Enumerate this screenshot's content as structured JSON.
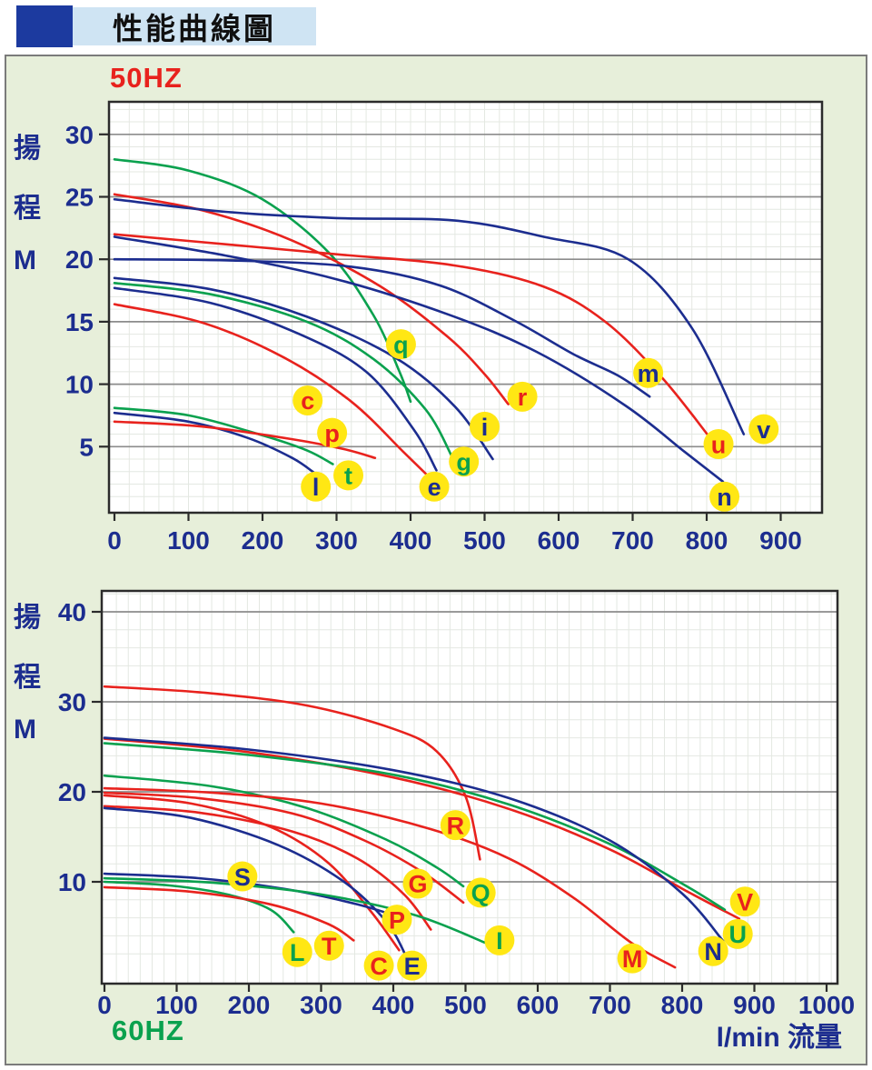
{
  "header": {
    "title": "性能曲線圖"
  },
  "colors": {
    "navy": "#1c2d8f",
    "red": "#e8221d",
    "green": "#0aa14e",
    "label_bg": "#ffe714",
    "panel_bg": "#e7efda",
    "title_bar_bg": "#cfe4f3",
    "title_square": "#1c3a9f",
    "grid_minor": "#e4e8e2",
    "grid_major": "#8c8c8c",
    "axis_frame": "#2b2b2b",
    "tick_text": "#1c2d8f"
  },
  "chart_data": [
    {
      "type": "line",
      "id": "50hz",
      "freq_label": "50HZ",
      "ylabel": "揚程 M",
      "ylabel_chars": [
        "揚",
        "程",
        "M"
      ],
      "xlabel": "",
      "x_ticks": [
        0,
        100,
        200,
        300,
        400,
        500,
        600,
        700,
        800,
        900
      ],
      "y_ticks": [
        5,
        10,
        15,
        20,
        25,
        30
      ],
      "xlim": [
        0,
        956
      ],
      "ylim": [
        0,
        32.6
      ],
      "x_unit": "l/min",
      "y_unit": "M",
      "grid": true,
      "series": [
        {
          "name": "q",
          "color_key": "green",
          "label": [
            387,
            13.2
          ],
          "points": [
            [
              0,
              28
            ],
            [
              100,
              27.1
            ],
            [
              200,
              24.8
            ],
            [
              290,
              20.5
            ],
            [
              350,
              15.5
            ],
            [
              385,
              11
            ],
            [
              400,
              8.6
            ]
          ]
        },
        {
          "name": "r",
          "color_key": "red",
          "label": [
            551,
            9.0
          ],
          "points": [
            [
              0,
              25.2
            ],
            [
              120,
              23.9
            ],
            [
              240,
              21.5
            ],
            [
              360,
              17.8
            ],
            [
              450,
              13.8
            ],
            [
              500,
              10.8
            ],
            [
              532,
              8.4
            ]
          ]
        },
        {
          "name": "v",
          "color_key": "navy",
          "label": [
            877,
            6.4
          ],
          "points": [
            [
              0,
              24.8
            ],
            [
              150,
              23.8
            ],
            [
              300,
              23.3
            ],
            [
              460,
              23.1
            ],
            [
              580,
              21.8
            ],
            [
              694,
              20.0
            ],
            [
              780,
              14.5
            ],
            [
              850,
              6.0
            ]
          ]
        },
        {
          "name": "u",
          "color_key": "red",
          "label": [
            816,
            5.2
          ],
          "points": [
            [
              0,
              22.0
            ],
            [
              150,
              21.2
            ],
            [
              300,
              20.4
            ],
            [
              460,
              19.5
            ],
            [
              580,
              17.8
            ],
            [
              663,
              15.0
            ],
            [
              740,
              10.5
            ],
            [
              802,
              5.9
            ]
          ]
        },
        {
          "name": "n",
          "color_key": "navy",
          "label": [
            824,
            1.0
          ],
          "points": [
            [
              0,
              21.8
            ],
            [
              150,
              20.3
            ],
            [
              300,
              18.4
            ],
            [
              450,
              15.6
            ],
            [
              570,
              12.6
            ],
            [
              690,
              8.3
            ],
            [
              770,
              4.6
            ],
            [
              822,
              2.2
            ]
          ]
        },
        {
          "name": "m",
          "color_key": "navy",
          "label": [
            721,
            10.9
          ],
          "points": [
            [
              0,
              20.0
            ],
            [
              160,
              19.9
            ],
            [
              320,
              19.4
            ],
            [
              440,
              17.9
            ],
            [
              540,
              15.1
            ],
            [
              620,
              12.4
            ],
            [
              680,
              10.7
            ],
            [
              723,
              9.0
            ]
          ]
        },
        {
          "name": "i",
          "color_key": "navy",
          "label": [
            500,
            6.6
          ],
          "points": [
            [
              0,
              18.5
            ],
            [
              130,
              17.6
            ],
            [
              260,
              15.4
            ],
            [
              380,
              12.1
            ],
            [
              460,
              8.2
            ],
            [
              511,
              4.0
            ]
          ]
        },
        {
          "name": "g",
          "color_key": "green",
          "label": [
            472,
            3.8
          ],
          "points": [
            [
              0,
              18.1
            ],
            [
              130,
              17.2
            ],
            [
              260,
              15.0
            ],
            [
              350,
              12.0
            ],
            [
              420,
              8.0
            ],
            [
              456,
              4.2
            ]
          ]
        },
        {
          "name": "e",
          "color_key": "navy",
          "label": [
            432,
            1.8
          ],
          "points": [
            [
              0,
              17.7
            ],
            [
              130,
              16.5
            ],
            [
              250,
              14.0
            ],
            [
              340,
              11.0
            ],
            [
              405,
              6.3
            ],
            [
              435,
              3.1
            ]
          ]
        },
        {
          "name": "c",
          "color_key": "red",
          "label": [
            261,
            8.7
          ],
          "points": [
            [
              0,
              16.4
            ],
            [
              120,
              14.9
            ],
            [
              230,
              12.1
            ],
            [
              320,
              8.6
            ],
            [
              390,
              4.6
            ],
            [
              428,
              2.4
            ]
          ]
        },
        {
          "name": "t",
          "color_key": "green",
          "label": [
            316,
            2.7
          ],
          "points": [
            [
              0,
              8.1
            ],
            [
              100,
              7.5
            ],
            [
              200,
              5.9
            ],
            [
              260,
              4.7
            ],
            [
              295,
              3.6
            ]
          ]
        },
        {
          "name": "l",
          "color_key": "navy",
          "label": [
            272,
            1.8
          ],
          "points": [
            [
              0,
              7.7
            ],
            [
              100,
              7.0
            ],
            [
              180,
              5.7
            ],
            [
              240,
              4.1
            ],
            [
              270,
              2.9
            ]
          ]
        },
        {
          "name": "p",
          "color_key": "red",
          "label": [
            294,
            6.1
          ],
          "points": [
            [
              0,
              7.0
            ],
            [
              120,
              6.6
            ],
            [
              240,
              5.6
            ],
            [
              310,
              4.8
            ],
            [
              352,
              4.1
            ]
          ]
        }
      ]
    },
    {
      "type": "line",
      "id": "60hz",
      "freq_label": "60HZ",
      "ylabel": "揚程 M",
      "ylabel_chars": [
        "揚",
        "程",
        "M"
      ],
      "xlabel": "l/min 流量",
      "x_ticks": [
        0,
        100,
        200,
        300,
        400,
        500,
        600,
        700,
        800,
        900,
        1000
      ],
      "y_ticks": [
        10,
        20,
        30,
        40
      ],
      "xlim": [
        0,
        1015
      ],
      "ylim": [
        0,
        42.4
      ],
      "x_unit": "l/min",
      "y_unit": "M",
      "grid": true,
      "series": [
        {
          "name": "R",
          "color_key": "red",
          "label": [
            486,
            16.3
          ],
          "points": [
            [
              0,
              31.7
            ],
            [
              140,
              31.0
            ],
            [
              280,
              29.6
            ],
            [
              400,
              27.0
            ],
            [
              460,
              24.5
            ],
            [
              500,
              19.5
            ],
            [
              520,
              12.5
            ]
          ]
        },
        {
          "name": "V",
          "color_key": "red",
          "label": [
            887,
            7.8
          ],
          "points": [
            [
              0,
              25.9
            ],
            [
              200,
              24.4
            ],
            [
              400,
              21.6
            ],
            [
              560,
              18.1
            ],
            [
              700,
              13.6
            ],
            [
              810,
              8.8
            ],
            [
              879,
              5.9
            ]
          ]
        },
        {
          "name": "U",
          "color_key": "green",
          "label": [
            877,
            4.2
          ],
          "points": [
            [
              0,
              25.4
            ],
            [
              200,
              24.1
            ],
            [
              400,
              21.9
            ],
            [
              560,
              18.6
            ],
            [
              700,
              14.2
            ],
            [
              800,
              9.8
            ],
            [
              859,
              6.9
            ]
          ]
        },
        {
          "name": "N",
          "color_key": "navy",
          "label": [
            843,
            2.3
          ],
          "points": [
            [
              0,
              26.0
            ],
            [
              200,
              24.7
            ],
            [
              400,
              22.4
            ],
            [
              560,
              19.3
            ],
            [
              700,
              14.6
            ],
            [
              800,
              8.7
            ],
            [
              857,
              3.4
            ]
          ]
        },
        {
          "name": "Q",
          "color_key": "green",
          "label": [
            521,
            8.8
          ],
          "points": [
            [
              0,
              21.8
            ],
            [
              150,
              20.6
            ],
            [
              280,
              18.2
            ],
            [
              390,
              14.7
            ],
            [
              460,
              11.6
            ],
            [
              497,
              9.5
            ]
          ]
        },
        {
          "name": "M",
          "color_key": "red",
          "label": [
            731,
            1.5
          ],
          "points": [
            [
              0,
              20.4
            ],
            [
              150,
              19.9
            ],
            [
              300,
              18.7
            ],
            [
              450,
              15.9
            ],
            [
              560,
              12.6
            ],
            [
              650,
              8.2
            ],
            [
              730,
              3.2
            ],
            [
              790,
              0.5
            ]
          ]
        },
        {
          "name": "G",
          "color_key": "red",
          "label": [
            434,
            9.8
          ],
          "points": [
            [
              0,
              19.9
            ],
            [
              130,
              19.3
            ],
            [
              260,
              17.6
            ],
            [
              360,
              14.6
            ],
            [
              440,
              11.1
            ],
            [
              497,
              7.7
            ]
          ]
        },
        {
          "name": "C",
          "color_key": "red",
          "label": [
            380,
            0.7
          ],
          "points": [
            [
              0,
              19.6
            ],
            [
              120,
              18.7
            ],
            [
              230,
              16.1
            ],
            [
              310,
              12.1
            ],
            [
              370,
              6.6
            ],
            [
              408,
              2.4
            ]
          ]
        },
        {
          "name": "P",
          "color_key": "red",
          "label": [
            405,
            5.8
          ],
          "points": [
            [
              0,
              18.4
            ],
            [
              130,
              17.7
            ],
            [
              260,
              15.6
            ],
            [
              350,
              12.6
            ],
            [
              415,
              8.6
            ],
            [
              452,
              4.7
            ]
          ]
        },
        {
          "name": "E",
          "color_key": "navy",
          "label": [
            426,
            0.7
          ],
          "points": [
            [
              0,
              18.2
            ],
            [
              120,
              17.1
            ],
            [
              240,
              14.1
            ],
            [
              330,
              10.1
            ],
            [
              390,
              5.6
            ],
            [
              418,
              1.7
            ]
          ]
        },
        {
          "name": "S",
          "color_key": "navy",
          "label": [
            191,
            10.6
          ],
          "points": [
            [
              0,
              10.9
            ],
            [
              130,
              10.4
            ],
            [
              250,
              9.2
            ],
            [
              350,
              7.5
            ],
            [
              415,
              5.9
            ]
          ]
        },
        {
          "name": "I",
          "color_key": "green",
          "label": [
            547,
            3.5
          ],
          "points": [
            [
              0,
              10.4
            ],
            [
              150,
              9.9
            ],
            [
              300,
              8.6
            ],
            [
              430,
              6.3
            ],
            [
              528,
              3.2
            ]
          ]
        },
        {
          "name": "L",
          "color_key": "green",
          "label": [
            267,
            2.2
          ],
          "points": [
            [
              0,
              10.0
            ],
            [
              90,
              9.6
            ],
            [
              170,
              8.6
            ],
            [
              230,
              6.9
            ],
            [
              262,
              4.4
            ]
          ]
        },
        {
          "name": "T",
          "color_key": "red",
          "label": [
            311,
            2.9
          ],
          "points": [
            [
              0,
              9.4
            ],
            [
              120,
              8.9
            ],
            [
              230,
              7.5
            ],
            [
              310,
              5.3
            ],
            [
              345,
              3.5
            ]
          ]
        }
      ]
    }
  ]
}
